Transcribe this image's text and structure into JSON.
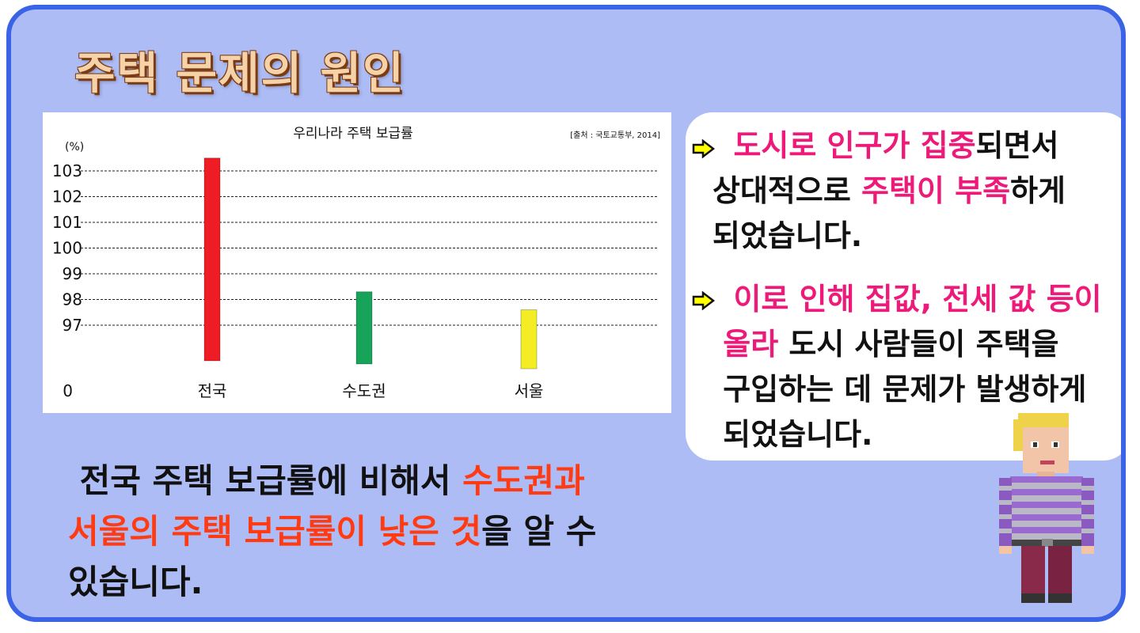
{
  "title": "주택 문제의 원인",
  "chart_data": {
    "type": "bar",
    "title": "우리나라 주택 보급률",
    "source": "[출처 : 국토교통부, 2014]",
    "ylabel": "(%)",
    "categories": [
      "전국",
      "수도권",
      "서울"
    ],
    "values": [
      103.5,
      98.3,
      97.6
    ],
    "colors": [
      "#ee1c24",
      "#17a35a",
      "#f4ec24"
    ],
    "yticks": [
      "103",
      "102",
      "101",
      "100",
      "99",
      "98",
      "97"
    ],
    "zero_label": "0",
    "ylim": [
      96,
      104
    ],
    "grid": true
  },
  "callout": {
    "bullet1": {
      "line1_hl": "도시로 인구가 집중",
      "line1_rest": "되면서",
      "line2_pre": "상대적으로 ",
      "line2_hl": "주택이 부족",
      "line2_post": "하게",
      "line3": "되었습니다."
    },
    "bullet2": {
      "line1_hl": "이로 인해 집값, 전세 값 등이",
      "line2_hl": "올라",
      "line2_rest": " 도시 사람들이 주택을",
      "line3": "구입하는 데 문제가 발생하게",
      "line4": "되었습니다."
    }
  },
  "summary": {
    "line1_pre": "전국 주택 보급률에 비해서 ",
    "line1_hl": "수도권과",
    "line2_hl": "서울의 주택 보급률이 낮은 것",
    "line2_post": "을 알 수",
    "line3": "있습니다."
  }
}
